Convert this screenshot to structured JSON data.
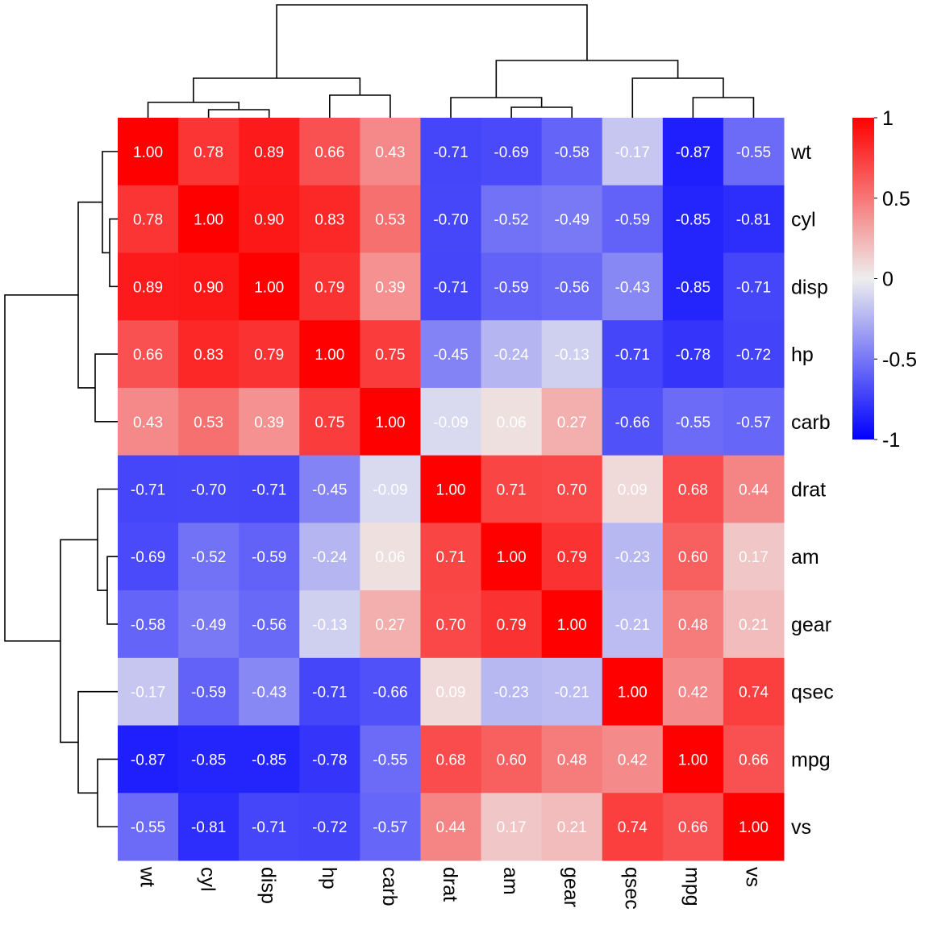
{
  "chart_data": {
    "type": "heatmap",
    "title": "",
    "xlabel": "",
    "ylabel": "",
    "rows": [
      "wt",
      "cyl",
      "disp",
      "hp",
      "carb",
      "drat",
      "am",
      "gear",
      "qsec",
      "mpg",
      "vs"
    ],
    "columns": [
      "wt",
      "cyl",
      "disp",
      "hp",
      "carb",
      "drat",
      "am",
      "gear",
      "qsec",
      "mpg",
      "vs"
    ],
    "values": [
      [
        1.0,
        0.78,
        0.89,
        0.66,
        0.43,
        -0.71,
        -0.69,
        -0.58,
        -0.17,
        -0.87,
        -0.55
      ],
      [
        0.78,
        1.0,
        0.9,
        0.83,
        0.53,
        -0.7,
        -0.52,
        -0.49,
        -0.59,
        -0.85,
        -0.81
      ],
      [
        0.89,
        0.9,
        1.0,
        0.79,
        0.39,
        -0.71,
        -0.59,
        -0.56,
        -0.43,
        -0.85,
        -0.71
      ],
      [
        0.66,
        0.83,
        0.79,
        1.0,
        0.75,
        -0.45,
        -0.24,
        -0.13,
        -0.71,
        -0.78,
        -0.72
      ],
      [
        0.43,
        0.53,
        0.39,
        0.75,
        1.0,
        -0.09,
        0.06,
        0.27,
        -0.66,
        -0.55,
        -0.57
      ],
      [
        -0.71,
        -0.7,
        -0.71,
        -0.45,
        -0.09,
        1.0,
        0.71,
        0.7,
        0.09,
        0.68,
        0.44
      ],
      [
        -0.69,
        -0.52,
        -0.59,
        -0.24,
        0.06,
        0.71,
        1.0,
        0.79,
        -0.23,
        0.6,
        0.17
      ],
      [
        -0.58,
        -0.49,
        -0.56,
        -0.13,
        0.27,
        0.7,
        0.79,
        1.0,
        -0.21,
        0.48,
        0.21
      ],
      [
        -0.17,
        -0.59,
        -0.43,
        -0.71,
        -0.66,
        0.09,
        -0.23,
        -0.21,
        1.0,
        0.42,
        0.74
      ],
      [
        -0.87,
        -0.85,
        -0.85,
        -0.78,
        -0.55,
        0.68,
        0.6,
        0.48,
        0.42,
        1.0,
        0.66
      ],
      [
        -0.55,
        -0.81,
        -0.71,
        -0.72,
        -0.57,
        0.44,
        0.17,
        0.21,
        0.74,
        0.66,
        1.0
      ]
    ],
    "value_labels": [
      [
        "1.00",
        "0.78",
        "0.89",
        "0.66",
        "0.43",
        "-0.71",
        "-0.69",
        "-0.58",
        "-0.17",
        "-0.87",
        "-0.55"
      ],
      [
        "0.78",
        "1.00",
        "0.90",
        "0.83",
        "0.53",
        "-0.70",
        "-0.52",
        "-0.49",
        "-0.59",
        "-0.85",
        "-0.81"
      ],
      [
        "0.89",
        "0.90",
        "1.00",
        "0.79",
        "0.39",
        "-0.71",
        "-0.59",
        "-0.56",
        "-0.43",
        "-0.85",
        "-0.71"
      ],
      [
        "0.66",
        "0.83",
        "0.79",
        "1.00",
        "0.75",
        "-0.45",
        "-0.24",
        "-0.13",
        "-0.71",
        "-0.78",
        "-0.72"
      ],
      [
        "0.43",
        "0.53",
        "0.39",
        "0.75",
        "1.00",
        "-0.09",
        "0.06",
        "0.27",
        "-0.66",
        "-0.55",
        "-0.57"
      ],
      [
        "-0.71",
        "-0.70",
        "-0.71",
        "-0.45",
        "-0.09",
        "1.00",
        "0.71",
        "0.70",
        "0.09",
        "0.68",
        "0.44"
      ],
      [
        "-0.69",
        "-0.52",
        "-0.59",
        "-0.24",
        "0.06",
        "0.71",
        "1.00",
        "0.79",
        "-0.23",
        "0.60",
        "0.17"
      ],
      [
        "-0.58",
        "-0.49",
        "-0.56",
        "-0.13",
        "0.27",
        "0.70",
        "0.79",
        "1.00",
        "-0.21",
        "0.48",
        "0.21"
      ],
      [
        "-0.17",
        "-0.59",
        "-0.43",
        "-0.71",
        "-0.66",
        "0.09",
        "-0.23",
        "-0.21",
        "1.00",
        "0.42",
        "0.74"
      ],
      [
        "-0.87",
        "-0.85",
        "-0.85",
        "-0.78",
        "-0.55",
        "0.68",
        "0.60",
        "0.48",
        "0.42",
        "1.00",
        "0.66"
      ],
      [
        "-0.55",
        "-0.81",
        "-0.71",
        "-0.72",
        "-0.57",
        "0.44",
        "0.17",
        "0.21",
        "0.74",
        "0.66",
        "1.00"
      ]
    ],
    "color_scale": {
      "min": -1,
      "mid": 0,
      "max": 1,
      "low_color": "#0000ff",
      "mid_color": "#eeeeee",
      "high_color": "#ff0000"
    },
    "legend": {
      "position": "right",
      "ticks": [
        1,
        0.5,
        0,
        -0.5,
        -1
      ],
      "tick_labels": [
        "1",
        "0.5",
        "0",
        "-0.5",
        "-1"
      ]
    },
    "column_dendrogram": true,
    "row_dendrogram": true,
    "grid": false
  }
}
